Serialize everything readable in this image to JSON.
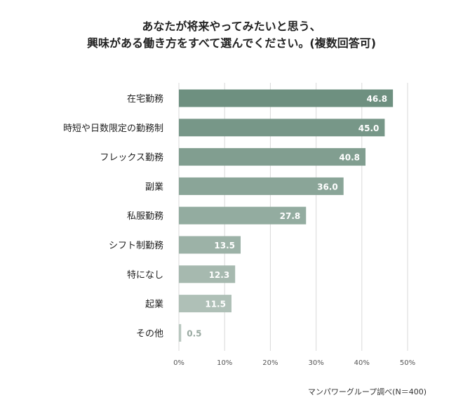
{
  "title_line1": "あなたが将来やってみたいと思う、",
  "title_line2": "興味がある働き方をすべて選んでください。(複数回答可)",
  "source": "マンパワーグループ調べ(N＝400)",
  "colors": {
    "bar_start": "#6e9080",
    "bar_end": "#b8c7bf",
    "bar_label_inside": "#ffffff",
    "bar_label_outside": "#9aaaa2",
    "grid": "#d8d8d8",
    "text": "#222222"
  },
  "chart_data": {
    "type": "bar",
    "orientation": "horizontal",
    "title": "あなたが将来やってみたいと思う、興味がある働き方をすべて選んでください。(複数回答可)",
    "categories": [
      "在宅勤務",
      "時短や日数限定の勤務制",
      "フレックス勤務",
      "副業",
      "私服勤務",
      "シフト制勤務",
      "特になし",
      "起業",
      "その他"
    ],
    "values": [
      46.8,
      45.0,
      40.8,
      36.0,
      27.8,
      13.5,
      12.3,
      11.5,
      0.5
    ],
    "value_labels": [
      "46.8",
      "45.0",
      "40.8",
      "36.0",
      "27.8",
      "13.5",
      "12.3",
      "11.5",
      "0.5"
    ],
    "xlim": [
      0,
      50
    ],
    "ticks": [
      0,
      10,
      20,
      30,
      40,
      50
    ],
    "tick_labels": [
      "0%",
      "10%",
      "20%",
      "30%",
      "40%",
      "50%"
    ],
    "grid": true,
    "xlabel": "",
    "ylabel": ""
  }
}
